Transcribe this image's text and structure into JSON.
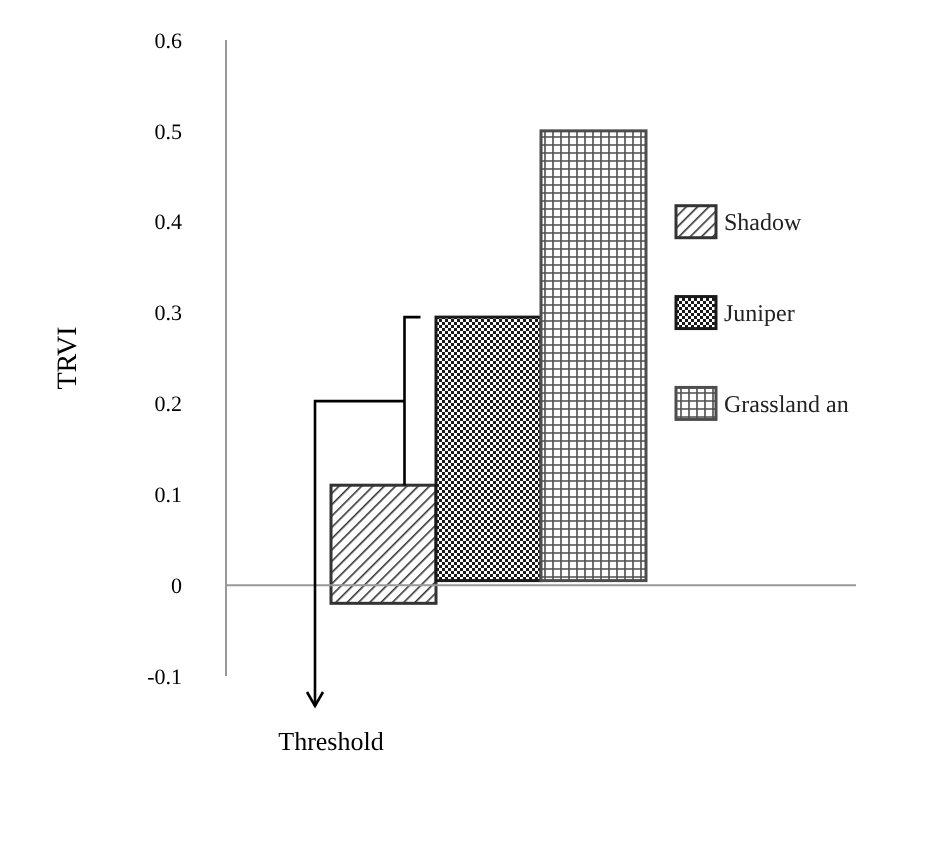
{
  "chart_data": {
    "type": "bar",
    "ylabel": "TRVI",
    "categories": [
      null,
      null,
      null,
      null,
      null,
      null
    ],
    "series": [
      {
        "name": "Shadow",
        "color": "#333333",
        "values": [
          null,
          0.13,
          null,
          null,
          null,
          null
        ],
        "base": [
          null,
          -0.02,
          null,
          null,
          null,
          null
        ]
      },
      {
        "name": "Juniper",
        "color": "#1a1a1a",
        "values": [
          null,
          null,
          0.29,
          null,
          null,
          null
        ],
        "base": [
          null,
          null,
          0.005,
          null,
          null,
          null
        ]
      },
      {
        "name": "Grassland an",
        "color": "#4d4d4d",
        "values": [
          null,
          null,
          null,
          0.495,
          null,
          null
        ],
        "base": [
          null,
          null,
          null,
          0.005,
          null,
          null
        ]
      }
    ],
    "ylim": [
      -0.1,
      0.6
    ],
    "yticks": [
      -0.1,
      0,
      0.1,
      0.2,
      0.3,
      0.4,
      0.5,
      0.6
    ],
    "legend": "right",
    "annotations": [
      "Threshold"
    ]
  }
}
